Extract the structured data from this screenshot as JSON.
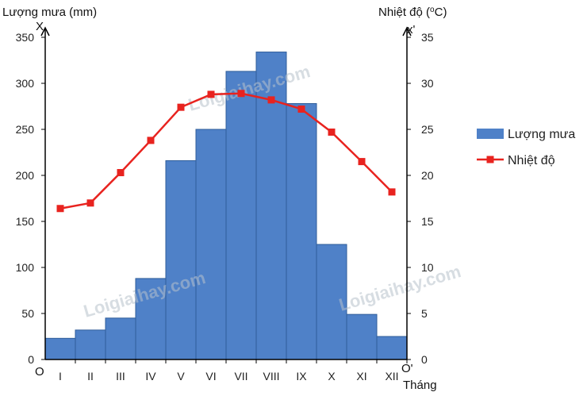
{
  "chart_data": {
    "type": "bar+line",
    "categories": [
      "I",
      "II",
      "III",
      "IV",
      "V",
      "VI",
      "VII",
      "VIII",
      "IX",
      "X",
      "XI",
      "XII"
    ],
    "series": [
      {
        "name": "Lượng mưa",
        "kind": "bar",
        "axis": "left",
        "color": "#4f81c8",
        "values": [
          23,
          32,
          45,
          88,
          216,
          250,
          313,
          334,
          278,
          125,
          49,
          25
        ]
      },
      {
        "name": "Nhiệt độ",
        "kind": "line",
        "axis": "right",
        "color": "#e8231f",
        "values": [
          16.4,
          17.0,
          20.3,
          23.8,
          27.4,
          28.8,
          28.9,
          28.2,
          27.2,
          24.7,
          21.5,
          18.2
        ]
      }
    ],
    "y_left": {
      "label": "Lượng mưa (mm)",
      "letter": "X",
      "ylim": [
        0,
        350
      ],
      "ticks": [
        0,
        50,
        100,
        150,
        200,
        250,
        300,
        350
      ]
    },
    "y_right": {
      "label_main": "Nhiệt độ (",
      "label_sup": "o",
      "label_end": "C)",
      "letter": "x'",
      "ylim": [
        0,
        35
      ],
      "ticks": [
        0,
        5,
        10,
        15,
        20,
        25,
        30,
        35
      ]
    },
    "x_axis": {
      "label": "Tháng",
      "origin_left": "O",
      "origin_right": "O'"
    },
    "legend": {
      "position": "right",
      "bar_label": "Lượng mưa",
      "line_label": "Nhiệt độ"
    },
    "watermark": "Loigiaihay.com",
    "grid": false
  }
}
